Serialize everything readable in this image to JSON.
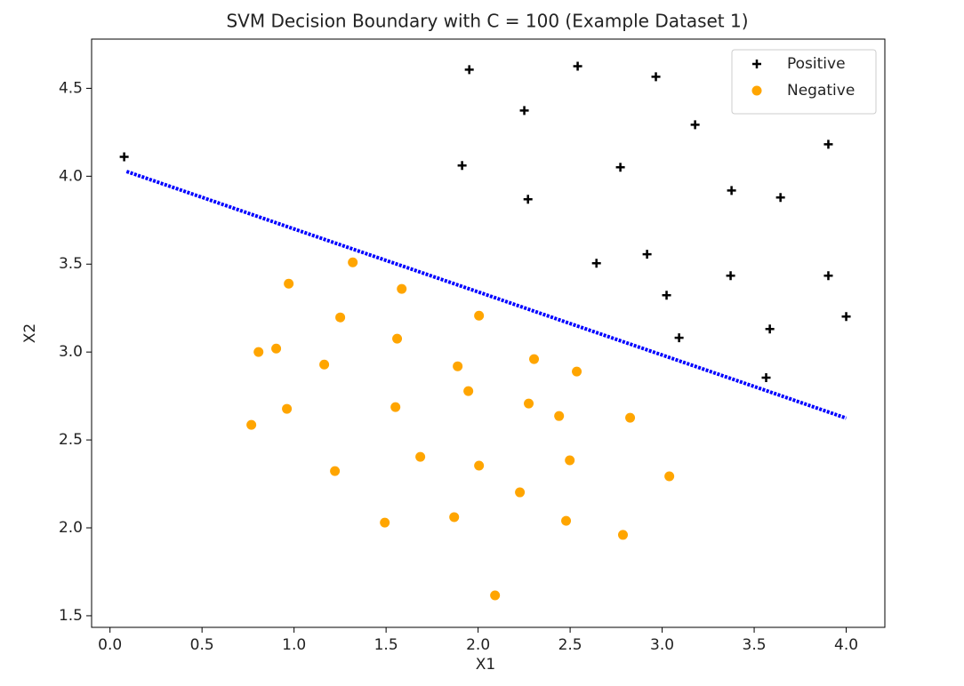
{
  "chart_data": {
    "type": "scatter",
    "title": "SVM Decision Boundary with C = 100 (Example Dataset 1)",
    "xlabel": "X1",
    "ylabel": "X2",
    "xlim": [
      -0.1,
      4.21
    ],
    "ylim": [
      1.434,
      4.78
    ],
    "xticks": [
      {
        "value": 0,
        "label": "0.0"
      },
      0.5,
      {
        "value": 1,
        "label": "1.0"
      },
      1.5,
      {
        "value": 2,
        "label": "2.0"
      },
      2.5,
      {
        "value": 3,
        "label": "3.0"
      },
      3.5,
      {
        "value": 4,
        "label": "4.0"
      }
    ],
    "yticks": [
      1.5,
      {
        "value": 2,
        "label": "2.0"
      },
      2.5,
      {
        "value": 3,
        "label": "3.0"
      },
      3.5,
      {
        "value": 4,
        "label": "4.0"
      },
      4.5
    ],
    "legend": "upper right",
    "series": [
      {
        "name": "Positive",
        "color": "#000000",
        "marker": "plus",
        "x": [
          0.077,
          1.952,
          2.541,
          2.966,
          2.251,
          3.179,
          3.903,
          1.913,
          2.773,
          2.271,
          3.377,
          3.643,
          2.643,
          2.918,
          3.024,
          3.372,
          3.903,
          4.0,
          3.092,
          3.585,
          3.565
        ],
        "values": [
          4.11,
          4.606,
          4.626,
          4.566,
          4.374,
          4.293,
          4.182,
          4.061,
          4.051,
          3.869,
          3.919,
          3.879,
          3.505,
          3.556,
          3.323,
          3.434,
          3.434,
          3.202,
          3.081,
          3.131,
          2.854
        ]
      },
      {
        "name": "Negative",
        "color": "#ffa500",
        "marker": "circle",
        "x": [
          1.319,
          0.971,
          1.585,
          1.251,
          2.005,
          1.56,
          0.807,
          0.903,
          1.164,
          1.889,
          2.304,
          2.536,
          1.947,
          0.961,
          1.551,
          2.275,
          2.44,
          2.826,
          0.768,
          1.686,
          2.498,
          2.005,
          1.222,
          3.039,
          2.227,
          1.493,
          1.87,
          2.478,
          2.787,
          2.092
        ],
        "values": [
          3.51,
          3.389,
          3.359,
          3.197,
          3.207,
          3.076,
          3.0,
          3.02,
          2.929,
          2.919,
          2.96,
          2.889,
          2.778,
          2.677,
          2.687,
          2.707,
          2.636,
          2.626,
          2.586,
          2.404,
          2.384,
          2.354,
          2.323,
          2.293,
          2.202,
          2.03,
          2.061,
          2.04,
          1.96,
          1.616
        ]
      },
      {
        "color": "#0000ff",
        "marker": "line",
        "x": [
          0.09,
          0.5,
          1.0,
          1.5,
          2.0,
          2.5,
          3.0,
          3.5,
          4.0
        ],
        "values": [
          4.027,
          3.88,
          3.7,
          3.521,
          3.342,
          3.162,
          2.983,
          2.804,
          2.624
        ]
      }
    ]
  }
}
